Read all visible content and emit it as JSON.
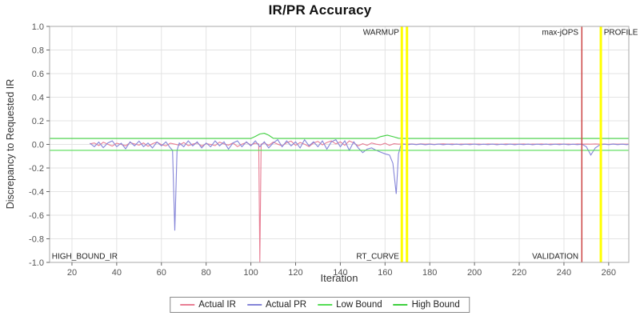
{
  "chart_data": {
    "type": "line",
    "title": "IR/PR Accuracy",
    "xlabel": "Iteration",
    "ylabel": "Discrepancy to Requested IR",
    "xlim": [
      10,
      269
    ],
    "ylim": [
      -1.0,
      1.0
    ],
    "x_ticks": [
      20,
      40,
      60,
      80,
      100,
      120,
      140,
      160,
      180,
      200,
      220,
      240,
      260
    ],
    "y_ticks": [
      "1.0",
      "0.8",
      "0.6",
      "0.4",
      "0.2",
      "0.0",
      "-0.2",
      "-0.4",
      "-0.6",
      "-0.8",
      "-1.0"
    ],
    "grid": true,
    "legend_position": "bottom",
    "series": [
      {
        "name": "Actual IR",
        "color": "#e87e94",
        "points": [
          [
            28,
            0.005
          ],
          [
            30,
            0.012
          ],
          [
            32,
            -0.01
          ],
          [
            34,
            0.018
          ],
          [
            36,
            0.002
          ],
          [
            38,
            -0.014
          ],
          [
            40,
            0.01
          ],
          [
            42,
            0.0
          ],
          [
            44,
            -0.012
          ],
          [
            46,
            0.015
          ],
          [
            48,
            0.004
          ],
          [
            50,
            -0.006
          ],
          [
            52,
            0.012
          ],
          [
            54,
            -0.016
          ],
          [
            56,
            0.006
          ],
          [
            58,
            0.02
          ],
          [
            60,
            -0.002
          ],
          [
            62,
            -0.012
          ],
          [
            64,
            0.01
          ],
          [
            66,
            0.002
          ],
          [
            68,
            -0.006
          ],
          [
            70,
            0.016
          ],
          [
            72,
            -0.01
          ],
          [
            74,
            0.002
          ],
          [
            76,
            0.012
          ],
          [
            78,
            -0.014
          ],
          [
            80,
            0.006
          ],
          [
            82,
            0.0
          ],
          [
            84,
            -0.01
          ],
          [
            86,
            0.02
          ],
          [
            88,
            0.004
          ],
          [
            90,
            -0.006
          ],
          [
            92,
            0.012
          ],
          [
            94,
            -0.018
          ],
          [
            96,
            0.002
          ],
          [
            98,
            0.016
          ],
          [
            100,
            -0.004
          ],
          [
            102,
            0.01
          ],
          [
            103.5,
            0.004
          ],
          [
            104,
            -1.0
          ],
          [
            104.6,
            0.002
          ],
          [
            106,
            0.012
          ],
          [
            108,
            -0.008
          ],
          [
            110,
            0.02
          ],
          [
            112,
            0.002
          ],
          [
            114,
            -0.012
          ],
          [
            116,
            0.014
          ],
          [
            118,
            0.028
          ],
          [
            120,
            -0.008
          ],
          [
            122,
            0.016
          ],
          [
            124,
            0.002
          ],
          [
            126,
            -0.018
          ],
          [
            128,
            0.012
          ],
          [
            130,
            0.026
          ],
          [
            132,
            -0.004
          ],
          [
            134,
            0.016
          ],
          [
            136,
            0.03
          ],
          [
            138,
            0.004
          ],
          [
            140,
            0.022
          ],
          [
            142,
            -0.008
          ],
          [
            144,
            0.03
          ],
          [
            146,
            0.012
          ],
          [
            148,
            -0.012
          ],
          [
            150,
            0.006
          ],
          [
            152,
            -0.008
          ],
          [
            154,
            0.012
          ],
          [
            156,
            0.002
          ],
          [
            158,
            -0.004
          ],
          [
            160,
            0.01
          ],
          [
            162,
            -0.008
          ],
          [
            164,
            0.006
          ],
          [
            166,
            0.002
          ],
          [
            168,
            0.004
          ],
          [
            170,
            0.002
          ],
          [
            172,
            0.004
          ],
          [
            174,
            0.001
          ],
          [
            176,
            0.005
          ],
          [
            178,
            0.002
          ],
          [
            180,
            0.004
          ],
          [
            182,
            0.001
          ],
          [
            184,
            0.003
          ],
          [
            186,
            0.005
          ],
          [
            188,
            0.002
          ],
          [
            190,
            0.004
          ],
          [
            192,
            0.001
          ],
          [
            194,
            0.003
          ],
          [
            196,
            0.002
          ],
          [
            198,
            0.004
          ],
          [
            200,
            0.002
          ],
          [
            202,
            0.003
          ],
          [
            204,
            0.001
          ],
          [
            206,
            0.004
          ],
          [
            208,
            0.002
          ],
          [
            210,
            0.003
          ],
          [
            212,
            0.001
          ],
          [
            214,
            0.004
          ],
          [
            216,
            0.002
          ],
          [
            218,
            0.003
          ],
          [
            220,
            0.002
          ],
          [
            222,
            0.004
          ],
          [
            224,
            0.001
          ],
          [
            226,
            0.003
          ],
          [
            228,
            0.002
          ],
          [
            230,
            0.004
          ],
          [
            232,
            0.001
          ],
          [
            234,
            0.003
          ],
          [
            236,
            0.002
          ],
          [
            238,
            0.004
          ],
          [
            240,
            0.002
          ],
          [
            242,
            0.003
          ],
          [
            244,
            0.001
          ],
          [
            246,
            0.004
          ],
          [
            248,
            0.002
          ],
          [
            250,
            0.003
          ],
          [
            252,
            0.002
          ],
          [
            254,
            0.004
          ],
          [
            256,
            0.002
          ],
          [
            258,
            0.003
          ],
          [
            260,
            0.001
          ],
          [
            262,
            0.004
          ],
          [
            264,
            0.002
          ],
          [
            266,
            0.003
          ],
          [
            268,
            0.002
          ],
          [
            269,
            0.003
          ]
        ]
      },
      {
        "name": "Actual PR",
        "color": "#8585d8",
        "points": [
          [
            28,
            0.01
          ],
          [
            30,
            -0.02
          ],
          [
            32,
            0.02
          ],
          [
            34,
            -0.028
          ],
          [
            36,
            0.012
          ],
          [
            38,
            0.03
          ],
          [
            40,
            -0.02
          ],
          [
            42,
            0.01
          ],
          [
            44,
            -0.038
          ],
          [
            46,
            0.022
          ],
          [
            48,
            -0.012
          ],
          [
            50,
            0.028
          ],
          [
            52,
            -0.02
          ],
          [
            54,
            0.012
          ],
          [
            56,
            -0.03
          ],
          [
            58,
            0.02
          ],
          [
            60,
            -0.012
          ],
          [
            62,
            0.022
          ],
          [
            64,
            -0.03
          ],
          [
            65,
            -0.05
          ],
          [
            66,
            -0.73
          ],
          [
            67,
            -0.05
          ],
          [
            68,
            0.012
          ],
          [
            70,
            -0.02
          ],
          [
            72,
            0.03
          ],
          [
            74,
            -0.012
          ],
          [
            76,
            0.022
          ],
          [
            78,
            -0.03
          ],
          [
            80,
            0.012
          ],
          [
            82,
            -0.02
          ],
          [
            84,
            0.03
          ],
          [
            86,
            -0.012
          ],
          [
            88,
            0.022
          ],
          [
            90,
            -0.04
          ],
          [
            92,
            0.012
          ],
          [
            94,
            0.03
          ],
          [
            96,
            -0.02
          ],
          [
            98,
            0.022
          ],
          [
            100,
            -0.012
          ],
          [
            102,
            0.03
          ],
          [
            104,
            -0.02
          ],
          [
            106,
            0.022
          ],
          [
            108,
            -0.03
          ],
          [
            110,
            0.012
          ],
          [
            112,
            0.04
          ],
          [
            114,
            -0.02
          ],
          [
            116,
            0.03
          ],
          [
            118,
            -0.012
          ],
          [
            120,
            0.022
          ],
          [
            122,
            -0.03
          ],
          [
            124,
            0.04
          ],
          [
            126,
            -0.012
          ],
          [
            128,
            0.022
          ],
          [
            130,
            -0.02
          ],
          [
            132,
            0.03
          ],
          [
            134,
            -0.04
          ],
          [
            136,
            0.022
          ],
          [
            138,
            0.04
          ],
          [
            140,
            -0.02
          ],
          [
            142,
            0.03
          ],
          [
            144,
            -0.05
          ],
          [
            146,
            0.022
          ],
          [
            148,
            -0.03
          ],
          [
            150,
            -0.07
          ],
          [
            152,
            -0.04
          ],
          [
            154,
            -0.03
          ],
          [
            156,
            -0.05
          ],
          [
            158,
            -0.065
          ],
          [
            160,
            -0.08
          ],
          [
            162,
            -0.09
          ],
          [
            163.5,
            -0.16
          ],
          [
            165,
            -0.42
          ],
          [
            166,
            -0.08
          ],
          [
            167,
            -0.01
          ],
          [
            168,
            0.002
          ],
          [
            170,
            -0.003
          ],
          [
            172,
            0.003
          ],
          [
            174,
            -0.002
          ],
          [
            176,
            0.003
          ],
          [
            178,
            -0.003
          ],
          [
            180,
            0.002
          ],
          [
            182,
            -0.002
          ],
          [
            184,
            0.003
          ],
          [
            186,
            -0.003
          ],
          [
            188,
            0.002
          ],
          [
            190,
            -0.002
          ],
          [
            192,
            0.003
          ],
          [
            194,
            -0.003
          ],
          [
            196,
            0.002
          ],
          [
            198,
            -0.002
          ],
          [
            200,
            0.003
          ],
          [
            202,
            -0.003
          ],
          [
            204,
            0.002
          ],
          [
            206,
            -0.002
          ],
          [
            208,
            0.003
          ],
          [
            210,
            -0.003
          ],
          [
            212,
            0.002
          ],
          [
            214,
            -0.002
          ],
          [
            216,
            0.003
          ],
          [
            218,
            -0.003
          ],
          [
            220,
            0.002
          ],
          [
            222,
            -0.002
          ],
          [
            224,
            0.003
          ],
          [
            226,
            -0.003
          ],
          [
            228,
            0.002
          ],
          [
            230,
            -0.002
          ],
          [
            232,
            0.003
          ],
          [
            234,
            -0.003
          ],
          [
            236,
            0.002
          ],
          [
            238,
            -0.002
          ],
          [
            240,
            0.003
          ],
          [
            242,
            -0.003
          ],
          [
            244,
            0.002
          ],
          [
            246,
            -0.002
          ],
          [
            248,
            0.002
          ],
          [
            250,
            -0.02
          ],
          [
            252,
            -0.09
          ],
          [
            254,
            -0.03
          ],
          [
            256,
            -0.005
          ],
          [
            258,
            0.002
          ],
          [
            260,
            -0.002
          ],
          [
            262,
            0.003
          ],
          [
            264,
            -0.002
          ],
          [
            266,
            0.002
          ],
          [
            268,
            -0.002
          ],
          [
            269,
            0.001
          ]
        ]
      },
      {
        "name": "Low Bound",
        "color": "#55dd55",
        "points": [
          [
            10,
            -0.05
          ],
          [
            269,
            -0.05
          ]
        ]
      },
      {
        "name": "High Bound",
        "color": "#3ecf3e",
        "points": [
          [
            10,
            0.05
          ],
          [
            100,
            0.05
          ],
          [
            102,
            0.068
          ],
          [
            104,
            0.088
          ],
          [
            106,
            0.094
          ],
          [
            108,
            0.078
          ],
          [
            110,
            0.052
          ],
          [
            112,
            0.05
          ],
          [
            156,
            0.05
          ],
          [
            158,
            0.066
          ],
          [
            161,
            0.078
          ],
          [
            164,
            0.064
          ],
          [
            166,
            0.052
          ],
          [
            168,
            0.05
          ],
          [
            269,
            0.05
          ]
        ]
      }
    ],
    "markers": {
      "vlines": [
        {
          "x": 167.5,
          "color": "#ffff00",
          "width": 3,
          "name": "warmup-marker"
        },
        {
          "x": 169.8,
          "color": "#ffff00",
          "width": 3,
          "name": "rt-curve-marker"
        },
        {
          "x": 248.0,
          "color": "#cc4444",
          "width": 1.5,
          "name": "max-jops-marker"
        },
        {
          "x": 256.5,
          "color": "#ffff00",
          "width": 3,
          "name": "profile-marker"
        }
      ]
    },
    "annotations": [
      {
        "text": "WARMUP",
        "x": 166.3,
        "y": 0.95,
        "anchor": "end"
      },
      {
        "text": "RT_CURVE",
        "x": 166.3,
        "y": -0.95,
        "anchor": "end"
      },
      {
        "text": "max-jOPS",
        "x": 246.5,
        "y": 0.95,
        "anchor": "end"
      },
      {
        "text": "VALIDATION",
        "x": 246.5,
        "y": -0.95,
        "anchor": "end"
      },
      {
        "text": "PROFILE",
        "x": 257.8,
        "y": 0.95,
        "anchor": "start"
      },
      {
        "text": "HIGH_BOUND_IR",
        "x": 11,
        "y": -0.95,
        "anchor": "start"
      }
    ]
  }
}
